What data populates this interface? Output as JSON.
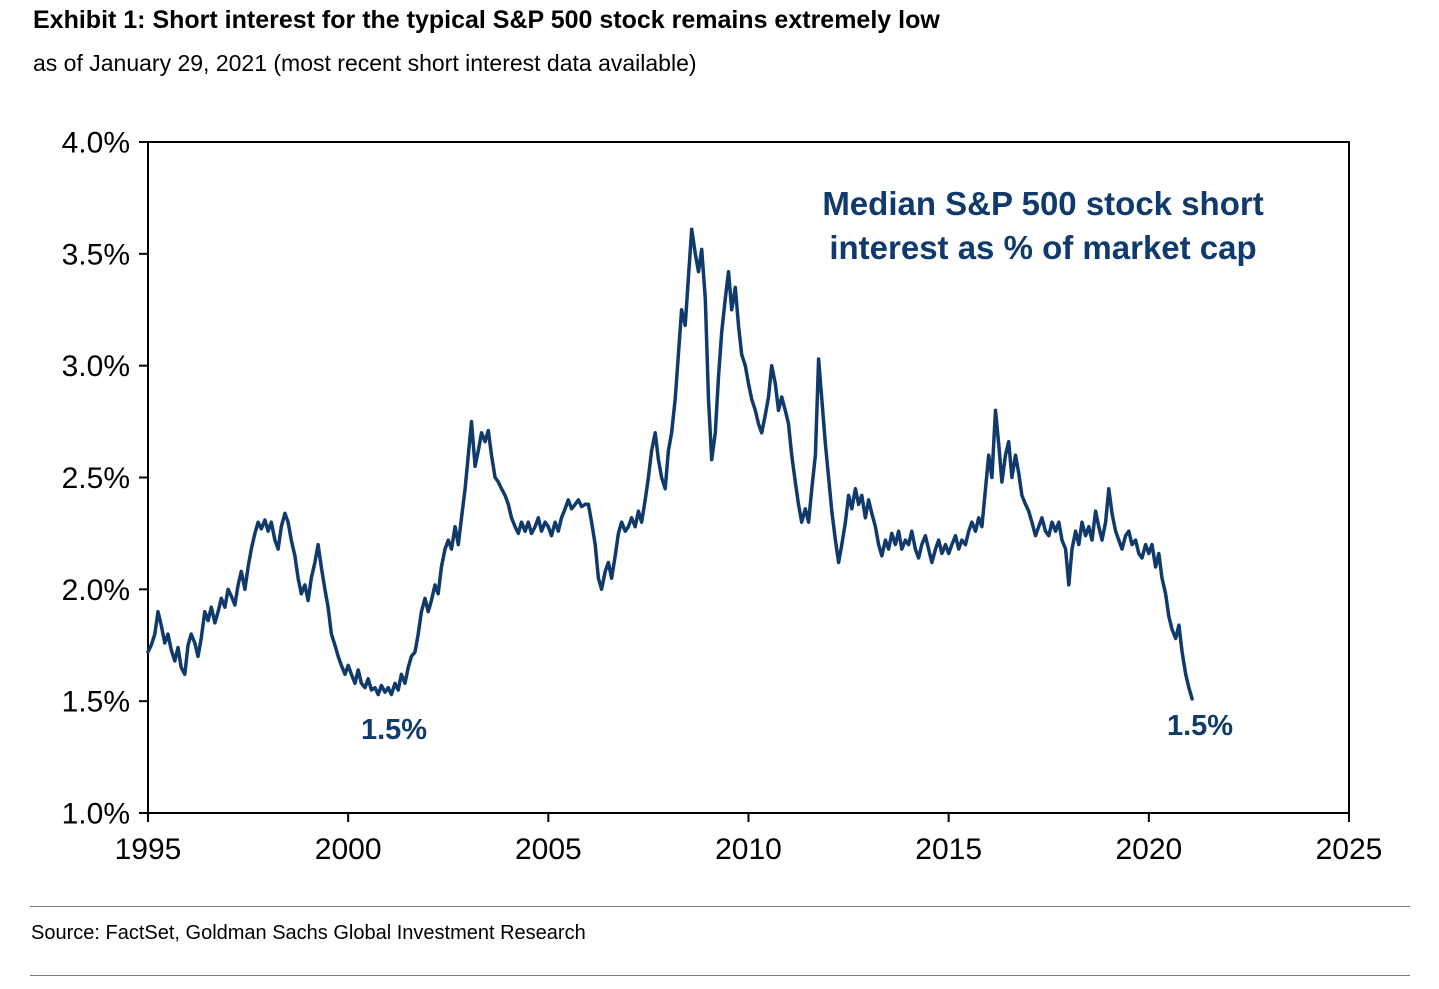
{
  "header": {
    "title": "Exhibit 1: Short interest for the typical S&P 500 stock remains extremely low",
    "subtitle": "as of January 29, 2021 (most recent short interest data available)"
  },
  "footer": {
    "source": "Source: FactSet, Goldman Sachs Global Investment Research"
  },
  "chart_data": {
    "type": "line",
    "title": "Exhibit 1: Short interest for the typical S&P 500 stock remains extremely low",
    "subtitle": "as of January 29, 2021 (most recent short interest data available)",
    "annotation": "Median S&P 500 stock short interest as % of market cap",
    "series_name": "Median S&P 500 stock short interest as % of market cap",
    "units": "percent of market cap",
    "grid": false,
    "legend_position": "none",
    "line_color": "#0F3A6B",
    "axis_color": "#000000",
    "xlabel": "",
    "ylabel": "",
    "xlim": [
      1995,
      2025
    ],
    "ylim": [
      1.0,
      4.0
    ],
    "xticks": [
      1995,
      2000,
      2005,
      2010,
      2015,
      2020,
      2025
    ],
    "xtick_labels": [
      "1995",
      "2000",
      "2005",
      "2010",
      "2015",
      "2020",
      "2025"
    ],
    "yticks": [
      1.0,
      1.5,
      2.0,
      2.5,
      3.0,
      3.5,
      4.0
    ],
    "ytick_labels": [
      "1.0%",
      "1.5%",
      "2.0%",
      "2.5%",
      "3.0%",
      "3.5%",
      "4.0%"
    ],
    "point_labels": [
      {
        "text": "1.5%",
        "x": 2000.7,
        "y": 1.5
      },
      {
        "text": "1.5%",
        "x": 2021.0,
        "y": 1.5
      }
    ],
    "points": [
      [
        1995.0,
        1.72
      ],
      [
        1995.08,
        1.75
      ],
      [
        1995.17,
        1.8
      ],
      [
        1995.25,
        1.9
      ],
      [
        1995.33,
        1.84
      ],
      [
        1995.42,
        1.76
      ],
      [
        1995.5,
        1.8
      ],
      [
        1995.58,
        1.73
      ],
      [
        1995.67,
        1.68
      ],
      [
        1995.75,
        1.74
      ],
      [
        1995.83,
        1.65
      ],
      [
        1995.92,
        1.62
      ],
      [
        1996.0,
        1.75
      ],
      [
        1996.08,
        1.8
      ],
      [
        1996.17,
        1.76
      ],
      [
        1996.25,
        1.7
      ],
      [
        1996.33,
        1.78
      ],
      [
        1996.42,
        1.9
      ],
      [
        1996.5,
        1.86
      ],
      [
        1996.58,
        1.92
      ],
      [
        1996.67,
        1.85
      ],
      [
        1996.75,
        1.9
      ],
      [
        1996.83,
        1.96
      ],
      [
        1996.92,
        1.92
      ],
      [
        1997.0,
        2.0
      ],
      [
        1997.08,
        1.97
      ],
      [
        1997.17,
        1.93
      ],
      [
        1997.25,
        2.02
      ],
      [
        1997.33,
        2.08
      ],
      [
        1997.42,
        2.0
      ],
      [
        1997.5,
        2.1
      ],
      [
        1997.58,
        2.18
      ],
      [
        1997.67,
        2.25
      ],
      [
        1997.75,
        2.3
      ],
      [
        1997.83,
        2.27
      ],
      [
        1997.92,
        2.31
      ],
      [
        1998.0,
        2.26
      ],
      [
        1998.08,
        2.3
      ],
      [
        1998.17,
        2.22
      ],
      [
        1998.25,
        2.18
      ],
      [
        1998.33,
        2.28
      ],
      [
        1998.42,
        2.34
      ],
      [
        1998.5,
        2.3
      ],
      [
        1998.58,
        2.22
      ],
      [
        1998.67,
        2.15
      ],
      [
        1998.75,
        2.05
      ],
      [
        1998.83,
        1.98
      ],
      [
        1998.92,
        2.02
      ],
      [
        1999.0,
        1.95
      ],
      [
        1999.08,
        2.05
      ],
      [
        1999.17,
        2.12
      ],
      [
        1999.25,
        2.2
      ],
      [
        1999.33,
        2.1
      ],
      [
        1999.42,
        2.0
      ],
      [
        1999.5,
        1.92
      ],
      [
        1999.58,
        1.8
      ],
      [
        1999.67,
        1.75
      ],
      [
        1999.75,
        1.7
      ],
      [
        1999.83,
        1.66
      ],
      [
        1999.92,
        1.62
      ],
      [
        2000.0,
        1.66
      ],
      [
        2000.08,
        1.62
      ],
      [
        2000.17,
        1.58
      ],
      [
        2000.25,
        1.64
      ],
      [
        2000.33,
        1.58
      ],
      [
        2000.42,
        1.56
      ],
      [
        2000.5,
        1.6
      ],
      [
        2000.58,
        1.55
      ],
      [
        2000.67,
        1.56
      ],
      [
        2000.75,
        1.53
      ],
      [
        2000.83,
        1.57
      ],
      [
        2000.92,
        1.54
      ],
      [
        2001.0,
        1.56
      ],
      [
        2001.08,
        1.53
      ],
      [
        2001.17,
        1.58
      ],
      [
        2001.25,
        1.55
      ],
      [
        2001.33,
        1.62
      ],
      [
        2001.42,
        1.58
      ],
      [
        2001.5,
        1.65
      ],
      [
        2001.58,
        1.7
      ],
      [
        2001.67,
        1.72
      ],
      [
        2001.75,
        1.8
      ],
      [
        2001.83,
        1.9
      ],
      [
        2001.92,
        1.96
      ],
      [
        2002.0,
        1.9
      ],
      [
        2002.08,
        1.95
      ],
      [
        2002.17,
        2.02
      ],
      [
        2002.25,
        1.98
      ],
      [
        2002.33,
        2.1
      ],
      [
        2002.42,
        2.18
      ],
      [
        2002.5,
        2.22
      ],
      [
        2002.58,
        2.18
      ],
      [
        2002.67,
        2.28
      ],
      [
        2002.75,
        2.2
      ],
      [
        2002.83,
        2.32
      ],
      [
        2002.92,
        2.45
      ],
      [
        2003.0,
        2.6
      ],
      [
        2003.08,
        2.75
      ],
      [
        2003.17,
        2.55
      ],
      [
        2003.25,
        2.62
      ],
      [
        2003.33,
        2.7
      ],
      [
        2003.42,
        2.66
      ],
      [
        2003.5,
        2.71
      ],
      [
        2003.58,
        2.6
      ],
      [
        2003.67,
        2.5
      ],
      [
        2003.75,
        2.48
      ],
      [
        2003.83,
        2.45
      ],
      [
        2003.92,
        2.42
      ],
      [
        2004.0,
        2.38
      ],
      [
        2004.08,
        2.32
      ],
      [
        2004.17,
        2.28
      ],
      [
        2004.25,
        2.25
      ],
      [
        2004.33,
        2.3
      ],
      [
        2004.42,
        2.26
      ],
      [
        2004.5,
        2.3
      ],
      [
        2004.58,
        2.25
      ],
      [
        2004.67,
        2.28
      ],
      [
        2004.75,
        2.32
      ],
      [
        2004.83,
        2.26
      ],
      [
        2004.92,
        2.3
      ],
      [
        2005.0,
        2.28
      ],
      [
        2005.08,
        2.24
      ],
      [
        2005.17,
        2.3
      ],
      [
        2005.25,
        2.26
      ],
      [
        2005.33,
        2.32
      ],
      [
        2005.42,
        2.36
      ],
      [
        2005.5,
        2.4
      ],
      [
        2005.58,
        2.36
      ],
      [
        2005.67,
        2.38
      ],
      [
        2005.75,
        2.4
      ],
      [
        2005.83,
        2.37
      ],
      [
        2005.92,
        2.38
      ],
      [
        2006.0,
        2.38
      ],
      [
        2006.08,
        2.3
      ],
      [
        2006.17,
        2.2
      ],
      [
        2006.25,
        2.05
      ],
      [
        2006.33,
        2.0
      ],
      [
        2006.42,
        2.08
      ],
      [
        2006.5,
        2.12
      ],
      [
        2006.58,
        2.05
      ],
      [
        2006.67,
        2.15
      ],
      [
        2006.75,
        2.25
      ],
      [
        2006.83,
        2.3
      ],
      [
        2006.92,
        2.26
      ],
      [
        2007.0,
        2.28
      ],
      [
        2007.08,
        2.32
      ],
      [
        2007.17,
        2.28
      ],
      [
        2007.25,
        2.35
      ],
      [
        2007.33,
        2.3
      ],
      [
        2007.42,
        2.4
      ],
      [
        2007.5,
        2.5
      ],
      [
        2007.58,
        2.62
      ],
      [
        2007.67,
        2.7
      ],
      [
        2007.75,
        2.58
      ],
      [
        2007.83,
        2.5
      ],
      [
        2007.92,
        2.45
      ],
      [
        2008.0,
        2.62
      ],
      [
        2008.08,
        2.7
      ],
      [
        2008.17,
        2.85
      ],
      [
        2008.25,
        3.05
      ],
      [
        2008.33,
        3.25
      ],
      [
        2008.42,
        3.18
      ],
      [
        2008.5,
        3.4
      ],
      [
        2008.58,
        3.61
      ],
      [
        2008.67,
        3.5
      ],
      [
        2008.75,
        3.42
      ],
      [
        2008.83,
        3.52
      ],
      [
        2008.92,
        3.3
      ],
      [
        2009.0,
        2.85
      ],
      [
        2009.08,
        2.58
      ],
      [
        2009.17,
        2.7
      ],
      [
        2009.25,
        2.95
      ],
      [
        2009.33,
        3.15
      ],
      [
        2009.42,
        3.3
      ],
      [
        2009.5,
        3.42
      ],
      [
        2009.58,
        3.25
      ],
      [
        2009.67,
        3.35
      ],
      [
        2009.75,
        3.18
      ],
      [
        2009.83,
        3.05
      ],
      [
        2009.92,
        3.0
      ],
      [
        2010.0,
        2.92
      ],
      [
        2010.08,
        2.85
      ],
      [
        2010.17,
        2.8
      ],
      [
        2010.25,
        2.74
      ],
      [
        2010.33,
        2.7
      ],
      [
        2010.42,
        2.78
      ],
      [
        2010.5,
        2.86
      ],
      [
        2010.58,
        3.0
      ],
      [
        2010.67,
        2.92
      ],
      [
        2010.75,
        2.8
      ],
      [
        2010.83,
        2.86
      ],
      [
        2010.92,
        2.8
      ],
      [
        2011.0,
        2.74
      ],
      [
        2011.08,
        2.6
      ],
      [
        2011.17,
        2.48
      ],
      [
        2011.25,
        2.38
      ],
      [
        2011.33,
        2.3
      ],
      [
        2011.42,
        2.36
      ],
      [
        2011.5,
        2.3
      ],
      [
        2011.58,
        2.45
      ],
      [
        2011.67,
        2.6
      ],
      [
        2011.75,
        3.03
      ],
      [
        2011.83,
        2.85
      ],
      [
        2011.92,
        2.65
      ],
      [
        2012.0,
        2.5
      ],
      [
        2012.08,
        2.35
      ],
      [
        2012.17,
        2.22
      ],
      [
        2012.25,
        2.12
      ],
      [
        2012.33,
        2.2
      ],
      [
        2012.42,
        2.3
      ],
      [
        2012.5,
        2.42
      ],
      [
        2012.58,
        2.36
      ],
      [
        2012.67,
        2.45
      ],
      [
        2012.75,
        2.38
      ],
      [
        2012.83,
        2.42
      ],
      [
        2012.92,
        2.32
      ],
      [
        2013.0,
        2.4
      ],
      [
        2013.08,
        2.34
      ],
      [
        2013.17,
        2.28
      ],
      [
        2013.25,
        2.2
      ],
      [
        2013.33,
        2.15
      ],
      [
        2013.42,
        2.22
      ],
      [
        2013.5,
        2.18
      ],
      [
        2013.58,
        2.25
      ],
      [
        2013.67,
        2.2
      ],
      [
        2013.75,
        2.26
      ],
      [
        2013.83,
        2.18
      ],
      [
        2013.92,
        2.22
      ],
      [
        2014.0,
        2.2
      ],
      [
        2014.08,
        2.26
      ],
      [
        2014.17,
        2.18
      ],
      [
        2014.25,
        2.14
      ],
      [
        2014.33,
        2.2
      ],
      [
        2014.42,
        2.24
      ],
      [
        2014.5,
        2.18
      ],
      [
        2014.58,
        2.12
      ],
      [
        2014.67,
        2.18
      ],
      [
        2014.75,
        2.22
      ],
      [
        2014.83,
        2.16
      ],
      [
        2014.92,
        2.2
      ],
      [
        2015.0,
        2.16
      ],
      [
        2015.08,
        2.2
      ],
      [
        2015.17,
        2.24
      ],
      [
        2015.25,
        2.18
      ],
      [
        2015.33,
        2.22
      ],
      [
        2015.42,
        2.2
      ],
      [
        2015.5,
        2.26
      ],
      [
        2015.58,
        2.3
      ],
      [
        2015.67,
        2.26
      ],
      [
        2015.75,
        2.32
      ],
      [
        2015.83,
        2.28
      ],
      [
        2015.92,
        2.45
      ],
      [
        2016.0,
        2.6
      ],
      [
        2016.08,
        2.5
      ],
      [
        2016.17,
        2.8
      ],
      [
        2016.25,
        2.65
      ],
      [
        2016.33,
        2.48
      ],
      [
        2016.42,
        2.6
      ],
      [
        2016.5,
        2.66
      ],
      [
        2016.58,
        2.5
      ],
      [
        2016.67,
        2.6
      ],
      [
        2016.75,
        2.52
      ],
      [
        2016.83,
        2.42
      ],
      [
        2016.92,
        2.38
      ],
      [
        2017.0,
        2.35
      ],
      [
        2017.08,
        2.3
      ],
      [
        2017.17,
        2.24
      ],
      [
        2017.25,
        2.28
      ],
      [
        2017.33,
        2.32
      ],
      [
        2017.42,
        2.26
      ],
      [
        2017.5,
        2.24
      ],
      [
        2017.58,
        2.3
      ],
      [
        2017.67,
        2.26
      ],
      [
        2017.75,
        2.3
      ],
      [
        2017.83,
        2.22
      ],
      [
        2017.92,
        2.18
      ],
      [
        2018.0,
        2.02
      ],
      [
        2018.08,
        2.18
      ],
      [
        2018.17,
        2.26
      ],
      [
        2018.25,
        2.2
      ],
      [
        2018.33,
        2.3
      ],
      [
        2018.42,
        2.24
      ],
      [
        2018.5,
        2.28
      ],
      [
        2018.58,
        2.22
      ],
      [
        2018.67,
        2.35
      ],
      [
        2018.75,
        2.28
      ],
      [
        2018.83,
        2.22
      ],
      [
        2018.92,
        2.3
      ],
      [
        2019.0,
        2.45
      ],
      [
        2019.08,
        2.34
      ],
      [
        2019.17,
        2.26
      ],
      [
        2019.25,
        2.22
      ],
      [
        2019.33,
        2.18
      ],
      [
        2019.42,
        2.24
      ],
      [
        2019.5,
        2.26
      ],
      [
        2019.58,
        2.2
      ],
      [
        2019.67,
        2.22
      ],
      [
        2019.75,
        2.16
      ],
      [
        2019.83,
        2.14
      ],
      [
        2019.92,
        2.2
      ],
      [
        2020.0,
        2.16
      ],
      [
        2020.08,
        2.2
      ],
      [
        2020.17,
        2.1
      ],
      [
        2020.25,
        2.16
      ],
      [
        2020.33,
        2.05
      ],
      [
        2020.42,
        1.98
      ],
      [
        2020.5,
        1.88
      ],
      [
        2020.58,
        1.82
      ],
      [
        2020.67,
        1.78
      ],
      [
        2020.75,
        1.84
      ],
      [
        2020.83,
        1.72
      ],
      [
        2020.92,
        1.62
      ],
      [
        2021.0,
        1.56
      ],
      [
        2021.08,
        1.51
      ]
    ]
  }
}
